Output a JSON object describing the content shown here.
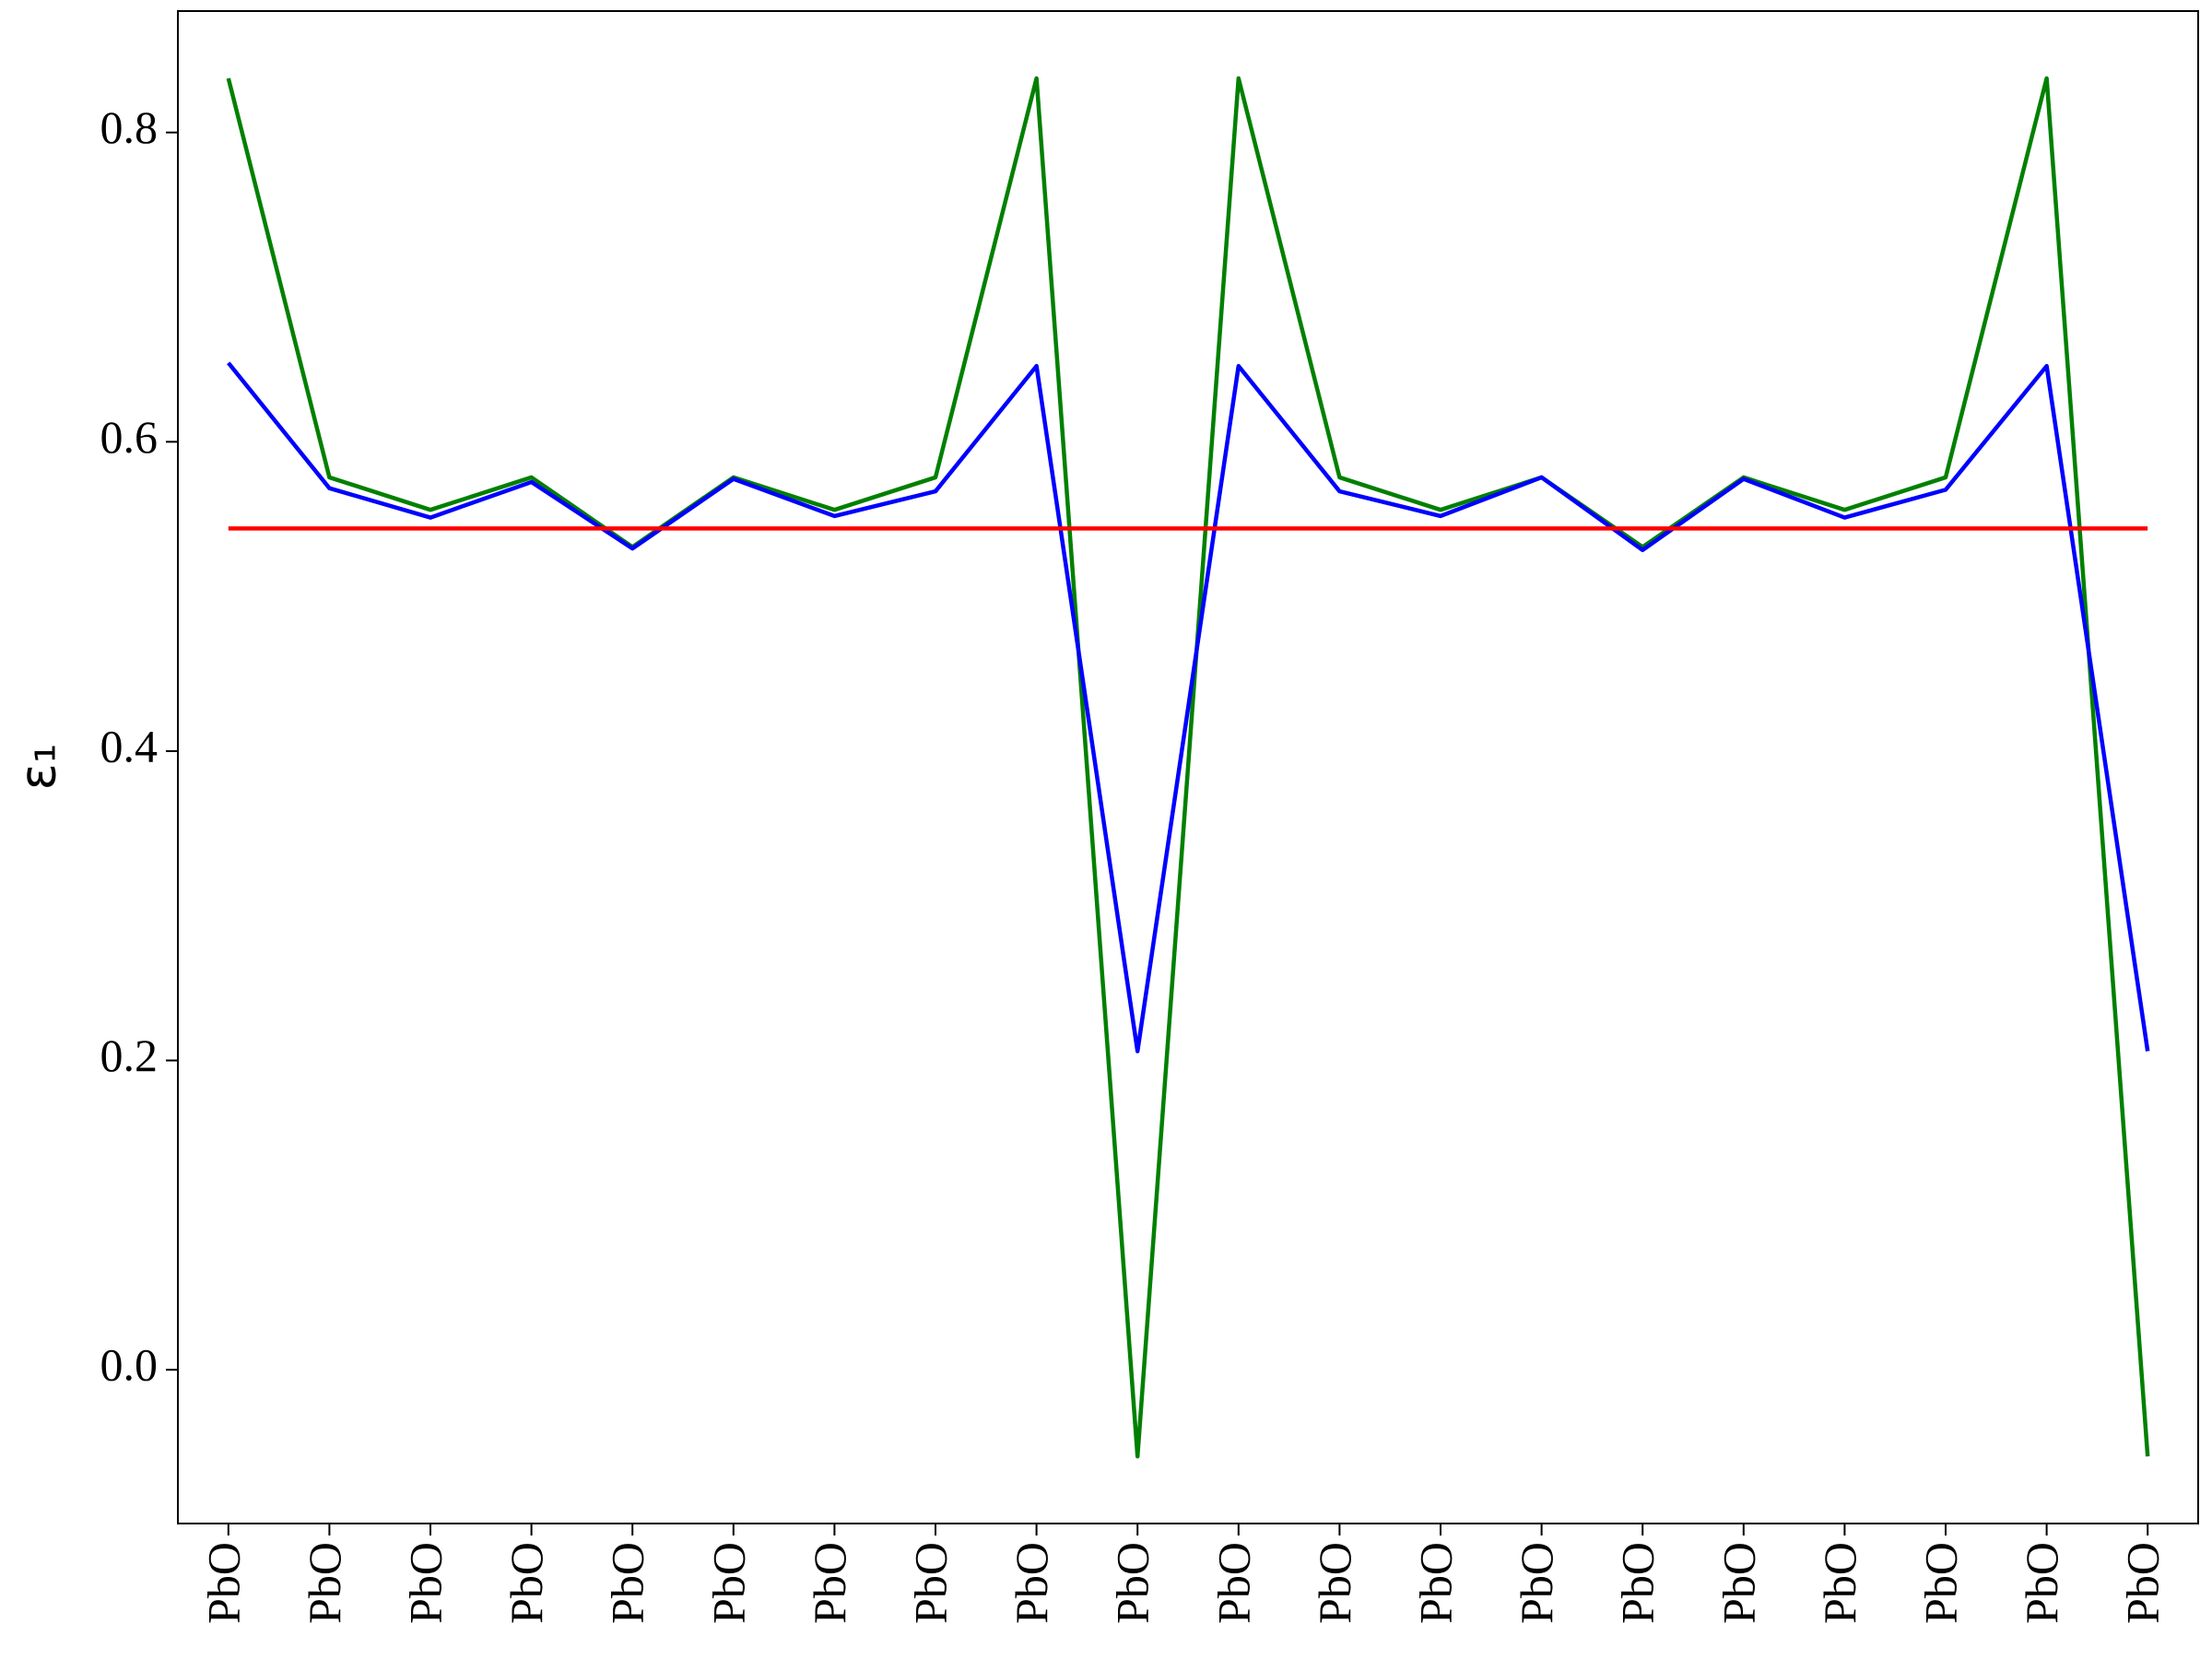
{
  "chart_data": {
    "type": "line",
    "y_label": "ε₁",
    "categories": [
      "PbO",
      "PbO",
      "PbO",
      "PbO",
      "PbO",
      "PbO",
      "PbO",
      "PbO",
      "PbO",
      "PbO",
      "PbO",
      "PbO",
      "PbO",
      "PbO",
      "PbO",
      "PbO",
      "PbO",
      "PbO",
      "PbO",
      "PbO"
    ],
    "series": [
      {
        "color": "#008000",
        "values": [
          0.835,
          0.577,
          0.556,
          0.577,
          0.532,
          0.577,
          0.556,
          0.577,
          0.835,
          -0.056,
          0.835,
          0.577,
          0.556,
          0.577,
          0.532,
          0.577,
          0.556,
          0.577,
          0.835,
          -0.056
        ]
      },
      {
        "color": "#0000ff",
        "values": [
          0.651,
          0.57,
          0.551,
          0.574,
          0.531,
          0.576,
          0.552,
          0.568,
          0.649,
          0.206,
          0.649,
          0.568,
          0.552,
          0.577,
          0.53,
          0.576,
          0.551,
          0.569,
          0.649,
          0.206
        ]
      },
      {
        "color": "#ff0000",
        "values": [
          0.544,
          0.544,
          0.544,
          0.544,
          0.544,
          0.544,
          0.544,
          0.544,
          0.544,
          0.544,
          0.544,
          0.544,
          0.544,
          0.544,
          0.544,
          0.544,
          0.544,
          0.544,
          0.544,
          0.544
        ]
      }
    ],
    "ylim": [
      -0.0994,
      0.8785
    ],
    "yticks": [
      {
        "value": 0,
        "label": "0.0"
      },
      0.2,
      0.4,
      0.6,
      0.8
    ],
    "grid": false
  }
}
